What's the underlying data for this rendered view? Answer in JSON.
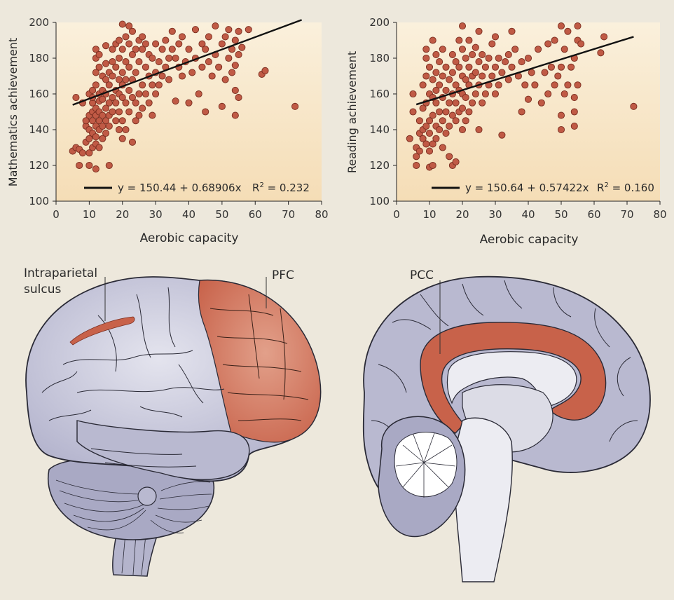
{
  "chart_data": [
    {
      "type": "scatter",
      "xlabel": "Aerobic capacity",
      "ylabel": "Mathematics achievement",
      "xlim": [
        0,
        80
      ],
      "ylim": [
        100,
        200
      ],
      "xticks": [
        "0",
        "10",
        "20",
        "30",
        "40",
        "50",
        "60",
        "70",
        "80"
      ],
      "yticks": [
        "100",
        "120",
        "140",
        "160",
        "180",
        "200"
      ],
      "fit": {
        "intercept": 150.44,
        "slope": 0.68906,
        "x_range": [
          5,
          74
        ]
      },
      "equation_label": "y = 150.44 + 0.68906x",
      "r2_label": "R",
      "r2_sup": "2",
      "r2_value": " = 0.232",
      "grid": false,
      "colors": {
        "point": "#c05a45",
        "point_edge": "#7a2e20",
        "bg_top": "#faf0dc",
        "bg_bottom": "#f5ddb6"
      },
      "points": [
        [
          5,
          128
        ],
        [
          6,
          130
        ],
        [
          6,
          158
        ],
        [
          7,
          120
        ],
        [
          7,
          129
        ],
        [
          8,
          155
        ],
        [
          8,
          127
        ],
        [
          9,
          142
        ],
        [
          9,
          145
        ],
        [
          9,
          133
        ],
        [
          10,
          135
        ],
        [
          10,
          140
        ],
        [
          10,
          148
        ],
        [
          10,
          160
        ],
        [
          10,
          120
        ],
        [
          10,
          127
        ],
        [
          11,
          130
        ],
        [
          11,
          138
        ],
        [
          11,
          145
        ],
        [
          11,
          150
        ],
        [
          11,
          155
        ],
        [
          11,
          158
        ],
        [
          11,
          162
        ],
        [
          12,
          118
        ],
        [
          12,
          132
        ],
        [
          12,
          136
        ],
        [
          12,
          142
        ],
        [
          12,
          148
        ],
        [
          12,
          152
        ],
        [
          12,
          165
        ],
        [
          12,
          172
        ],
        [
          12,
          180
        ],
        [
          12,
          185
        ],
        [
          13,
          130
        ],
        [
          13,
          140
        ],
        [
          13,
          145
        ],
        [
          13,
          150
        ],
        [
          13,
          156
        ],
        [
          13,
          160
        ],
        [
          13,
          175
        ],
        [
          13,
          182
        ],
        [
          14,
          135
        ],
        [
          14,
          142
        ],
        [
          14,
          148
        ],
        [
          14,
          157
        ],
        [
          14,
          162
        ],
        [
          14,
          170
        ],
        [
          15,
          138
        ],
        [
          15,
          145
        ],
        [
          15,
          152
        ],
        [
          15,
          160
        ],
        [
          15,
          168
        ],
        [
          15,
          177
        ],
        [
          15,
          187
        ],
        [
          16,
          120
        ],
        [
          16,
          142
        ],
        [
          16,
          148
        ],
        [
          16,
          155
        ],
        [
          16,
          165
        ],
        [
          16,
          172
        ],
        [
          17,
          150
        ],
        [
          17,
          158
        ],
        [
          17,
          170
        ],
        [
          17,
          178
        ],
        [
          17,
          185
        ],
        [
          18,
          145
        ],
        [
          18,
          155
        ],
        [
          18,
          162
        ],
        [
          18,
          175
        ],
        [
          18,
          188
        ],
        [
          19,
          140
        ],
        [
          19,
          150
        ],
        [
          19,
          160
        ],
        [
          19,
          168
        ],
        [
          19,
          180
        ],
        [
          19,
          190
        ],
        [
          20,
          135
        ],
        [
          20,
          145
        ],
        [
          20,
          158
        ],
        [
          20,
          165
        ],
        [
          20,
          172
        ],
        [
          20,
          185
        ],
        [
          20,
          199
        ],
        [
          21,
          140
        ],
        [
          21,
          155
        ],
        [
          21,
          168
        ],
        [
          21,
          178
        ],
        [
          21,
          192
        ],
        [
          22,
          150
        ],
        [
          22,
          162
        ],
        [
          22,
          175
        ],
        [
          22,
          188
        ],
        [
          22,
          198
        ],
        [
          23,
          133
        ],
        [
          23,
          158
        ],
        [
          23,
          168
        ],
        [
          23,
          182
        ],
        [
          23,
          195
        ],
        [
          24,
          145
        ],
        [
          24,
          155
        ],
        [
          24,
          172
        ],
        [
          24,
          185
        ],
        [
          25,
          148
        ],
        [
          25,
          160
        ],
        [
          25,
          178
        ],
        [
          25,
          190
        ],
        [
          26,
          152
        ],
        [
          26,
          165
        ],
        [
          26,
          185
        ],
        [
          26,
          192
        ],
        [
          27,
          160
        ],
        [
          27,
          175
        ],
        [
          27,
          188
        ],
        [
          28,
          155
        ],
        [
          28,
          170
        ],
        [
          28,
          182
        ],
        [
          29,
          148
        ],
        [
          29,
          165
        ],
        [
          29,
          180
        ],
        [
          30,
          160
        ],
        [
          30,
          172
        ],
        [
          30,
          188
        ],
        [
          31,
          165
        ],
        [
          31,
          178
        ],
        [
          32,
          170
        ],
        [
          32,
          185
        ],
        [
          33,
          175
        ],
        [
          33,
          190
        ],
        [
          34,
          180
        ],
        [
          34,
          168
        ],
        [
          35,
          185
        ],
        [
          35,
          195
        ],
        [
          36,
          156
        ],
        [
          36,
          180
        ],
        [
          37,
          175
        ],
        [
          37,
          188
        ],
        [
          38,
          170
        ],
        [
          38,
          192
        ],
        [
          39,
          178
        ],
        [
          40,
          155
        ],
        [
          40,
          185
        ],
        [
          41,
          172
        ],
        [
          42,
          180
        ],
        [
          42,
          196
        ],
        [
          43,
          160
        ],
        [
          44,
          175
        ],
        [
          44,
          188
        ],
        [
          45,
          150
        ],
        [
          45,
          185
        ],
        [
          46,
          178
        ],
        [
          46,
          192
        ],
        [
          47,
          170
        ],
        [
          48,
          182
        ],
        [
          48,
          198
        ],
        [
          49,
          175
        ],
        [
          50,
          153
        ],
        [
          50,
          188
        ],
        [
          51,
          168
        ],
        [
          51,
          192
        ],
        [
          52,
          180
        ],
        [
          52,
          196
        ],
        [
          53,
          172
        ],
        [
          53,
          185
        ],
        [
          54,
          148
        ],
        [
          54,
          162
        ],
        [
          54,
          176
        ],
        [
          54,
          190
        ],
        [
          55,
          158
        ],
        [
          55,
          182
        ],
        [
          55,
          195
        ],
        [
          56,
          186
        ],
        [
          58,
          196
        ],
        [
          62,
          171
        ],
        [
          63,
          173
        ],
        [
          72,
          153
        ]
      ]
    },
    {
      "type": "scatter",
      "xlabel": "Aerobic capacity",
      "ylabel": "Reading achievement",
      "xlim": [
        0,
        80
      ],
      "ylim": [
        100,
        200
      ],
      "xticks": [
        "0",
        "10",
        "20",
        "30",
        "40",
        "50",
        "60",
        "70",
        "80"
      ],
      "yticks": [
        "100",
        "120",
        "140",
        "160",
        "180",
        "200"
      ],
      "fit": {
        "intercept": 150.64,
        "slope": 0.57422,
        "x_range": [
          6,
          72
        ]
      },
      "equation_label": "y = 150.64 + 0.57422x",
      "r2_label": "R",
      "r2_sup": "2",
      "r2_value": " = 0.160",
      "grid": false,
      "colors": {
        "point": "#c05a45",
        "point_edge": "#7a2e20",
        "bg_top": "#faf0dc",
        "bg_bottom": "#f5ddb6"
      },
      "points": [
        [
          4,
          135
        ],
        [
          5,
          150
        ],
        [
          5,
          160
        ],
        [
          6,
          125
        ],
        [
          6,
          130
        ],
        [
          6,
          120
        ],
        [
          7,
          138
        ],
        [
          7,
          145
        ],
        [
          7,
          128
        ],
        [
          8,
          140
        ],
        [
          8,
          152
        ],
        [
          8,
          165
        ],
        [
          8,
          135
        ],
        [
          9,
          132
        ],
        [
          9,
          142
        ],
        [
          9,
          155
        ],
        [
          9,
          170
        ],
        [
          9,
          180
        ],
        [
          9,
          185
        ],
        [
          10,
          119
        ],
        [
          10,
          128
        ],
        [
          10,
          138
        ],
        [
          10,
          145
        ],
        [
          10,
          160
        ],
        [
          10,
          175
        ],
        [
          11,
          120
        ],
        [
          11,
          132
        ],
        [
          11,
          148
        ],
        [
          11,
          158
        ],
        [
          11,
          168
        ],
        [
          11,
          190
        ],
        [
          12,
          135
        ],
        [
          12,
          142
        ],
        [
          12,
          155
        ],
        [
          12,
          162
        ],
        [
          12,
          172
        ],
        [
          12,
          182
        ],
        [
          13,
          140
        ],
        [
          13,
          150
        ],
        [
          13,
          165
        ],
        [
          13,
          178
        ],
        [
          14,
          130
        ],
        [
          14,
          145
        ],
        [
          14,
          158
        ],
        [
          14,
          170
        ],
        [
          14,
          185
        ],
        [
          15,
          138
        ],
        [
          15,
          150
        ],
        [
          15,
          162
        ],
        [
          15,
          175
        ],
        [
          16,
          125
        ],
        [
          16,
          142
        ],
        [
          16,
          155
        ],
        [
          16,
          168
        ],
        [
          17,
          120
        ],
        [
          17,
          148
        ],
        [
          17,
          160
        ],
        [
          17,
          172
        ],
        [
          17,
          182
        ],
        [
          18,
          122
        ],
        [
          18,
          145
        ],
        [
          18,
          155
        ],
        [
          18,
          165
        ],
        [
          18,
          178
        ],
        [
          19,
          150
        ],
        [
          19,
          162
        ],
        [
          19,
          175
        ],
        [
          19,
          190
        ],
        [
          20,
          140
        ],
        [
          20,
          152
        ],
        [
          20,
          160
        ],
        [
          20,
          170
        ],
        [
          20,
          185
        ],
        [
          20,
          198
        ],
        [
          21,
          145
        ],
        [
          21,
          158
        ],
        [
          21,
          168
        ],
        [
          21,
          180
        ],
        [
          22,
          150
        ],
        [
          22,
          165
        ],
        [
          22,
          175
        ],
        [
          22,
          190
        ],
        [
          23,
          155
        ],
        [
          23,
          170
        ],
        [
          23,
          182
        ],
        [
          24,
          160
        ],
        [
          24,
          172
        ],
        [
          24,
          186
        ],
        [
          25,
          140
        ],
        [
          25,
          165
        ],
        [
          25,
          178
        ],
        [
          25,
          195
        ],
        [
          26,
          155
        ],
        [
          26,
          170
        ],
        [
          26,
          182
        ],
        [
          27,
          160
        ],
        [
          27,
          175
        ],
        [
          28,
          165
        ],
        [
          28,
          180
        ],
        [
          29,
          170
        ],
        [
          29,
          188
        ],
        [
          30,
          160
        ],
        [
          30,
          175
        ],
        [
          30,
          192
        ],
        [
          31,
          165
        ],
        [
          31,
          180
        ],
        [
          32,
          137
        ],
        [
          32,
          172
        ],
        [
          33,
          178
        ],
        [
          34,
          168
        ],
        [
          34,
          182
        ],
        [
          35,
          175
        ],
        [
          35,
          195
        ],
        [
          36,
          185
        ],
        [
          37,
          170
        ],
        [
          38,
          150
        ],
        [
          38,
          178
        ],
        [
          39,
          165
        ],
        [
          40,
          157
        ],
        [
          40,
          180
        ],
        [
          41,
          172
        ],
        [
          42,
          165
        ],
        [
          43,
          185
        ],
        [
          44,
          155
        ],
        [
          45,
          172
        ],
        [
          46,
          160
        ],
        [
          46,
          188
        ],
        [
          47,
          175
        ],
        [
          48,
          165
        ],
        [
          48,
          190
        ],
        [
          49,
          170
        ],
        [
          50,
          140
        ],
        [
          50,
          148
        ],
        [
          50,
          175
        ],
        [
          50,
          198
        ],
        [
          51,
          160
        ],
        [
          51,
          185
        ],
        [
          52,
          165
        ],
        [
          52,
          195
        ],
        [
          53,
          175
        ],
        [
          54,
          142
        ],
        [
          54,
          150
        ],
        [
          54,
          158
        ],
        [
          54,
          180
        ],
        [
          55,
          165
        ],
        [
          55,
          190
        ],
        [
          55,
          198
        ],
        [
          56,
          188
        ],
        [
          62,
          183
        ],
        [
          63,
          192
        ],
        [
          72,
          153
        ]
      ]
    }
  ],
  "brain_labels": {
    "intraparietal_line1": "Intraparietal",
    "intraparietal_line2": "sulcus",
    "pfc": "PFC",
    "pcc": "PCC"
  },
  "brain_colors": {
    "cortex": "#b9b9d0",
    "cortex_edge": "#2a2a36",
    "highlight": "#c8624a",
    "cerebellum": "#a9a9c4",
    "midline_fill": "#ececf2"
  }
}
